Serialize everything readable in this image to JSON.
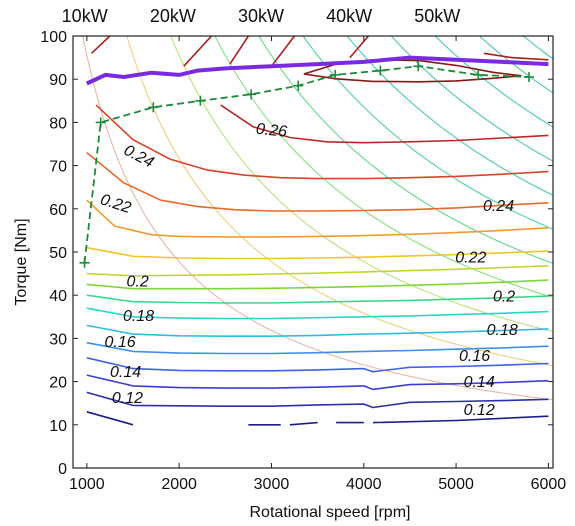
{
  "chart_data": {
    "type": "line",
    "title": "",
    "xlabel": "Rotational speed [rpm]",
    "ylabel": "Torque [Nm]",
    "xlim": [
      850,
      6050
    ],
    "ylim": [
      0,
      100
    ],
    "xticks": [
      1000,
      2000,
      3000,
      4000,
      5000,
      6000
    ],
    "yticks": [
      0,
      10,
      20,
      30,
      40,
      50,
      60,
      70,
      80,
      90,
      100
    ],
    "grid": false,
    "power_labels": [
      {
        "label": "10kW",
        "kw": 10
      },
      {
        "label": "20kW",
        "kw": 20
      },
      {
        "label": "30kW",
        "kw": 30
      },
      {
        "label": "40kW",
        "kw": 40
      },
      {
        "label": "50kW",
        "kw": 50
      }
    ],
    "power_curve_colors": [
      "#e6b8a8",
      "#ebd07a",
      "#b9e37e",
      "#86e07c",
      "#63d88c",
      "#54d3a4",
      "#4dc9b8"
    ],
    "power_curves_kw": [
      10,
      15,
      20,
      25,
      30,
      35,
      40,
      45,
      50,
      55,
      60,
      65
    ],
    "max_torque": {
      "color": "#7a2be2",
      "x": [
        1000,
        1200,
        1400,
        1700,
        2000,
        2200,
        2500,
        3000,
        3500,
        4000,
        4500,
        5000,
        5500,
        6000
      ],
      "y": [
        89,
        91,
        90.5,
        91.5,
        91,
        92,
        92.5,
        93,
        93.5,
        94,
        95,
        94.5,
        94,
        93.5
      ]
    },
    "optimal_path": {
      "color": "#1f8a3a",
      "x": [
        975,
        1150,
        1720,
        2230,
        2780,
        3290,
        3690,
        4180,
        4590,
        5240,
        5790
      ],
      "y": [
        47.5,
        80,
        83.5,
        85,
        86.5,
        88.5,
        91,
        92,
        93,
        91,
        90.5
      ]
    },
    "series": [
      {
        "name": "",
        "level": "",
        "color": "#1a1f8c",
        "segments": [
          {
            "x": [
              1000,
              1500
            ],
            "y": [
              13,
              10
            ]
          },
          {
            "x": [
              2750,
              3100
            ],
            "y": [
              10,
              10
            ]
          },
          {
            "x": [
              3200,
              3500
            ],
            "y": [
              10,
              10.5
            ]
          },
          {
            "x": [
              3700,
              4000
            ],
            "y": [
              10.5,
              10.5
            ]
          },
          {
            "x": [
              4100,
              5000,
              6000
            ],
            "y": [
              10.5,
              11,
              12
            ]
          }
        ]
      },
      {
        "name": "",
        "level": "0.12",
        "color": "#2d2fae",
        "segments": [
          {
            "x": [
              1000,
              1500,
              2000,
              2500,
              3000,
              3500,
              4000,
              4100,
              4500,
              5000,
              5500,
              6000
            ],
            "y": [
              17.5,
              14.5,
              14.4,
              14.3,
              14.3,
              14.6,
              14.8,
              14.0,
              15.2,
              15.4,
              15.6,
              15.9
            ]
          }
        ]
      },
      {
        "name": "",
        "level": "0.14",
        "color": "#3a3fd2",
        "segments": [
          {
            "x": [
              1000,
              1500,
              2000,
              2500,
              3000,
              3500,
              4000,
              4100,
              4500,
              5000,
              5500,
              6000
            ],
            "y": [
              21.5,
              19,
              18.6,
              18.5,
              18.5,
              18.7,
              19.0,
              18.2,
              19.3,
              19.5,
              19.8,
              20.2
            ]
          }
        ]
      },
      {
        "name": "",
        "level": "0.14",
        "color": "#3f63e2",
        "segments": [
          {
            "x": [
              1000,
              1500,
              2000,
              2500,
              3000,
              3500,
              4000,
              4100,
              4500,
              5000,
              5500,
              6000
            ],
            "y": [
              25.5,
              23,
              22.6,
              22.5,
              22.5,
              22.7,
              23.0,
              22.3,
              23.3,
              23.5,
              23.8,
              24.2
            ]
          }
        ]
      },
      {
        "name": "",
        "level": "0.16",
        "color": "#3f8ee8",
        "segments": [
          {
            "x": [
              1000,
              1500,
              2000,
              2500,
              3000,
              3500,
              4000,
              4500,
              5000,
              5500,
              6000
            ],
            "y": [
              29,
              27,
              26.6,
              26.5,
              26.5,
              26.7,
              27.0,
              27.2,
              27.5,
              27.8,
              28.2
            ]
          }
        ]
      },
      {
        "name": "",
        "level": "0.16",
        "color": "#2fbde6",
        "segments": [
          {
            "x": [
              1000,
              1500,
              2000,
              2500,
              3000,
              3500,
              4000,
              4500,
              5000,
              5500,
              6000
            ],
            "y": [
              33,
              31,
              30.6,
              30.5,
              30.5,
              30.7,
              31.0,
              31.2,
              31.5,
              31.8,
              32.2
            ]
          }
        ]
      },
      {
        "name": "",
        "level": "0.18",
        "color": "#25d8c8",
        "segments": [
          {
            "x": [
              1000,
              1500,
              2000,
              2500,
              3000,
              3500,
              4000,
              4500,
              5000,
              5500,
              6000
            ],
            "y": [
              37,
              35,
              34.7,
              34.6,
              34.6,
              34.8,
              35.0,
              35.2,
              35.5,
              35.8,
              36.2
            ]
          }
        ]
      },
      {
        "name": "",
        "level": "0.18",
        "color": "#3bd88a",
        "segments": [
          {
            "x": [
              1000,
              1500,
              2000,
              2500,
              3000,
              3500,
              4000,
              4500,
              5000,
              5500,
              6000
            ],
            "y": [
              40,
              38.5,
              38.3,
              38.2,
              38.2,
              38.4,
              38.6,
              38.8,
              39.1,
              39.4,
              39.8
            ]
          }
        ]
      },
      {
        "name": "",
        "level": "0.2",
        "color": "#7fd63a",
        "segments": [
          {
            "x": [
              1000,
              1500,
              2000,
              2500,
              3000,
              3500,
              4000,
              4500,
              5000,
              5500,
              6000
            ],
            "y": [
              42.5,
              41.5,
              41.5,
              41.5,
              41.6,
              41.8,
              42.0,
              42.3,
              42.6,
              43.0,
              43.5
            ]
          }
        ]
      },
      {
        "name": "",
        "level": "0.2",
        "color": "#c3d62a",
        "segments": [
          {
            "x": [
              1000,
              1500,
              2000,
              2500,
              3000,
              3500,
              4000,
              4500,
              5000,
              5500,
              6000
            ],
            "y": [
              45,
              44.5,
              44.6,
              44.7,
              44.9,
              45.1,
              45.4,
              45.7,
              46.0,
              46.4,
              46.8
            ]
          }
        ]
      },
      {
        "name": "",
        "level": "0.22",
        "color": "#f0c62a",
        "segments": [
          {
            "x": [
              1000,
              1500,
              2000,
              2500,
              3000,
              3500,
              4000,
              4500,
              5000,
              5500,
              6000
            ],
            "y": [
              51,
              49,
              48.6,
              48.5,
              48.5,
              48.6,
              48.8,
              49.1,
              49.4,
              49.8,
              50.2
            ]
          }
        ]
      },
      {
        "name": "",
        "level": "0.22",
        "color": "#f59a2c",
        "segments": [
          {
            "x": [
              1000,
              1300,
              1700,
              2000,
              2500,
              3000,
              3500,
              4000,
              4500,
              5000,
              5500,
              6000
            ],
            "y": [
              62,
              56,
              54,
              53.6,
              53.5,
              53.5,
              53.6,
              53.8,
              54.1,
              54.5,
              55.0,
              55.6
            ]
          }
        ]
      },
      {
        "name": "",
        "level": "0.24",
        "color": "#ea6a2a",
        "segments": [
          {
            "x": [
              1000,
              1400,
              1800,
              2200,
              2600,
              3000,
              3500,
              4000,
              4500,
              5000,
              5500,
              6000
            ],
            "y": [
              73,
              66,
              62,
              60.5,
              59.8,
              59.5,
              59.5,
              59.6,
              59.8,
              60.2,
              60.8,
              61.4
            ]
          }
        ]
      },
      {
        "name": "",
        "level": "0.24",
        "color": "#d9432a",
        "segments": [
          {
            "x": [
              1100,
              1500,
              1900,
              2300,
              2700,
              3100,
              3500,
              4000,
              4500,
              5000,
              5500,
              6000
            ],
            "y": [
              84,
              76,
              71.5,
              69,
              67.8,
              67.2,
              67,
              67,
              67.2,
              67.5,
              68,
              68.6
            ]
          }
        ]
      },
      {
        "name": "",
        "level": "0.26",
        "color": "#b8282a",
        "segments": [
          {
            "x": [
              2450,
              2800,
              3200,
              3600,
              4000,
              4500,
              5000,
              5500,
              6000
            ],
            "y": [
              84,
              79,
              76.5,
              75.5,
              75.3,
              75.5,
              75.8,
              76.4,
              77
            ]
          }
        ]
      },
      {
        "name": "",
        "level": "0.26",
        "color": "#a8201e",
        "segments": [
          {
            "x": [
              1050,
              1250
            ],
            "y": [
              96,
              100
            ]
          },
          {
            "x": [
              2050,
              2350
            ],
            "y": [
              93,
              100
            ]
          },
          {
            "x": [
              2550,
              2750
            ],
            "y": [
              93.5,
              100
            ]
          },
          {
            "x": [
              3000,
              3250
            ],
            "y": [
              93,
              100
            ]
          },
          {
            "x": [
              3850,
              4050
            ],
            "y": [
              95,
              100
            ]
          },
          {
            "x": [
              5300,
              5600,
              6000
            ],
            "y": [
              96,
              95,
              94.5
            ]
          }
        ]
      },
      {
        "name": "",
        "level": "0.26",
        "color": "#8a1816",
        "segments": [
          {
            "x": [
              3350,
              3700,
              4100,
              4600,
              5000,
              5400,
              5700,
              5400,
              5000,
              4600,
              4100,
              3700,
              3350
            ],
            "y": [
              91.2,
              93.5,
              94.5,
              94.3,
              93.2,
              91.6,
              90.8,
              90.2,
              89.6,
              89.4,
              89.5,
              90.1,
              91.2
            ]
          }
        ]
      }
    ],
    "annotations": [
      {
        "text": "0.26",
        "x": 3000,
        "y": 78,
        "rotate": 6
      },
      {
        "text": "0.24",
        "x": 1560,
        "y": 72,
        "rotate": 28
      },
      {
        "text": "0.22",
        "x": 1310,
        "y": 61,
        "rotate": 18
      },
      {
        "text": "0.2",
        "x": 1550,
        "y": 43,
        "rotate": 0
      },
      {
        "text": "0.18",
        "x": 1560,
        "y": 35,
        "rotate": 0
      },
      {
        "text": "0.16",
        "x": 1360,
        "y": 29,
        "rotate": 0
      },
      {
        "text": "0.14",
        "x": 1420,
        "y": 22,
        "rotate": 0
      },
      {
        "text": "0.12",
        "x": 1440,
        "y": 16,
        "rotate": 0
      },
      {
        "text": "0.24",
        "x": 5460,
        "y": 60.5,
        "rotate": 0
      },
      {
        "text": "0.22",
        "x": 5160,
        "y": 48.5,
        "rotate": 0
      },
      {
        "text": "0.2",
        "x": 5520,
        "y": 39.5,
        "rotate": 0
      },
      {
        "text": "0.18",
        "x": 5500,
        "y": 31.8,
        "rotate": 0
      },
      {
        "text": "0.16",
        "x": 5200,
        "y": 25.8,
        "rotate": 0
      },
      {
        "text": "0.14",
        "x": 5250,
        "y": 19.7,
        "rotate": 0
      },
      {
        "text": "0.12",
        "x": 5250,
        "y": 13.3,
        "rotate": 0
      }
    ]
  }
}
